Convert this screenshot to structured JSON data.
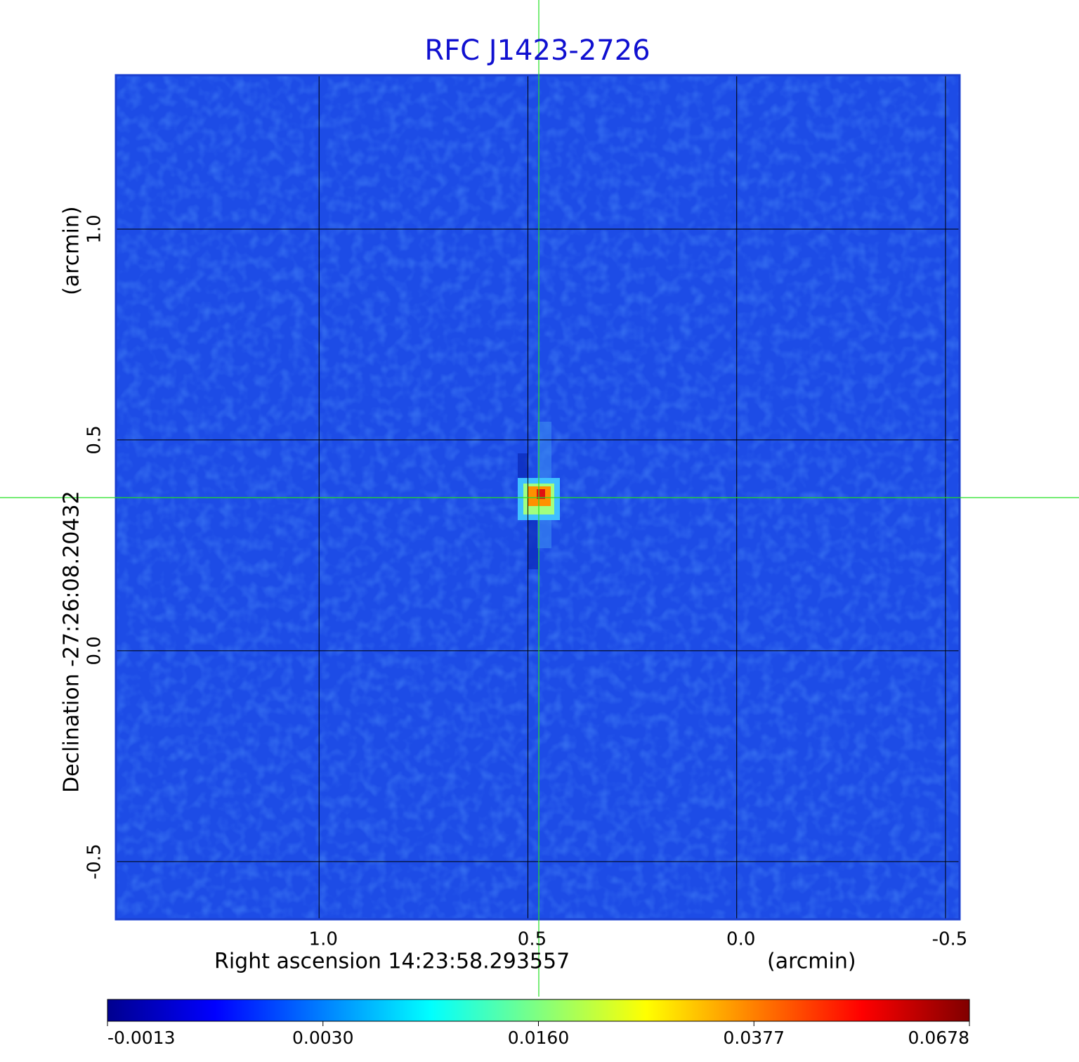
{
  "chart_data": {
    "type": "image",
    "title": "RFC J1423-2726",
    "xlabel": "Right ascension  14:23:58.293557",
    "xunit": "(arcmin)",
    "ylabel": "Declination  -27:26:08.20432",
    "yunit": "(arcmin)",
    "xlim": [
      1.4865,
      -0.5337
    ],
    "ylim": [
      -0.637,
      1.365
    ],
    "xticks": [
      {
        "value": 1,
        "label": "1.0"
      },
      0.5,
      {
        "value": 0,
        "label": "0.0"
      },
      -0.5
    ],
    "yticks": [
      -0.5,
      {
        "value": 0,
        "label": "0.0"
      },
      0.5,
      {
        "value": 1,
        "label": "1.0"
      }
    ],
    "grid": true,
    "colorbar": {
      "ticks": [
        -0.0013,
        {
          "value": 0.003,
          "label": "0.0030"
        },
        {
          "value": 0.016,
          "label": "0.0160"
        },
        0.0377,
        0.0678
      ],
      "colors": [
        "#00008f",
        "#0000ff",
        "#0080ff",
        "#00ffff",
        "#80ff80",
        "#ffff00",
        "#ff8000",
        "#ff0000",
        "#800000"
      ]
    }
  }
}
